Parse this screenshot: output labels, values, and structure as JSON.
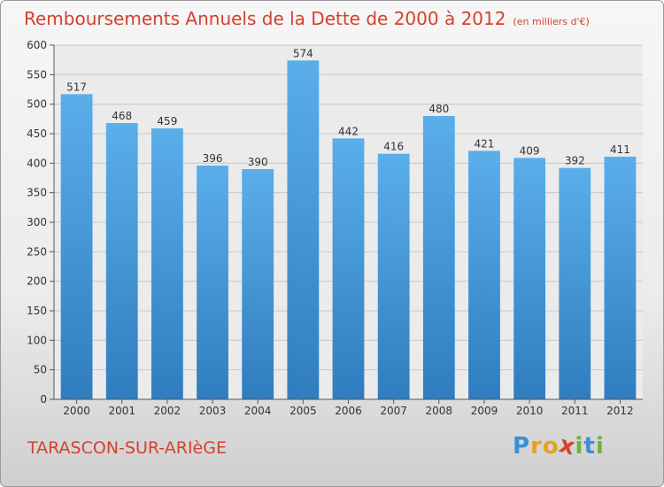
{
  "title": "Remboursements Annuels de la Dette de 2000 à 2012",
  "subtitle": "(en milliers d'€)",
  "commune": "TARASCON-SUR-ARIèGE",
  "logo": {
    "letters": [
      "P",
      "r",
      "o",
      "x",
      "i",
      "t",
      "i"
    ],
    "colors": [
      "#3a8fd6",
      "#e8a21a",
      "#e8a21a",
      "#d2422c",
      "#6fb23a",
      "#3a8fd6",
      "#6fb23a"
    ]
  },
  "chart_data": {
    "type": "bar",
    "categories": [
      "2000",
      "2001",
      "2002",
      "2003",
      "2004",
      "2005",
      "2006",
      "2007",
      "2008",
      "2009",
      "2010",
      "2011",
      "2012"
    ],
    "values": [
      517,
      468,
      459,
      396,
      390,
      574,
      442,
      416,
      480,
      421,
      409,
      392,
      411
    ],
    "title": "Remboursements Annuels de la Dette de 2000 à 2012",
    "subtitle": "(en milliers d'€)",
    "xlabel": "",
    "ylabel": "",
    "ylim": [
      0,
      600
    ],
    "yticks": [
      0,
      50,
      100,
      150,
      200,
      250,
      300,
      350,
      400,
      450,
      500,
      550,
      600
    ],
    "grid": true,
    "bar_color_top": "#5aaeea",
    "bar_color_bottom": "#2f7dbf"
  }
}
